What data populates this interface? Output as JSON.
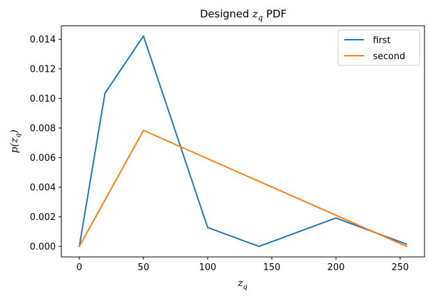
{
  "chart_data": {
    "type": "line",
    "title": {
      "prefix": "Designed ",
      "math": "z",
      "math_sub": "q",
      "suffix": " PDF"
    },
    "xlabel": {
      "math": "z",
      "sub": "q"
    },
    "ylabel": {
      "prefix": "p(",
      "math": "z",
      "sub": "q",
      "suffix": ")"
    },
    "xlim": [
      -14,
      269
    ],
    "ylim": [
      -0.00071,
      0.01491
    ],
    "xticks": [
      0,
      50,
      100,
      150,
      200,
      250
    ],
    "xtick_labels": [
      "0",
      "50",
      "100",
      "150",
      "200",
      "250"
    ],
    "yticks": [
      0.0,
      0.002,
      0.004,
      0.006,
      0.008,
      0.01,
      0.012,
      0.014
    ],
    "ytick_labels": [
      "0.000",
      "0.002",
      "0.004",
      "0.006",
      "0.008",
      "0.010",
      "0.012",
      "0.014"
    ],
    "grid": false,
    "legend_position": "top-right",
    "series": [
      {
        "name": "first",
        "color": "#1f77b4",
        "x": [
          0,
          20,
          50,
          100,
          140,
          200,
          255
        ],
        "y": [
          0.0,
          0.01035,
          0.01422,
          0.00128,
          0.0,
          0.00192,
          0.00015
        ]
      },
      {
        "name": "second",
        "color": "#ff7f0e",
        "x": [
          0,
          50,
          255
        ],
        "y": [
          0.0,
          0.00784,
          0.0
        ]
      }
    ]
  }
}
